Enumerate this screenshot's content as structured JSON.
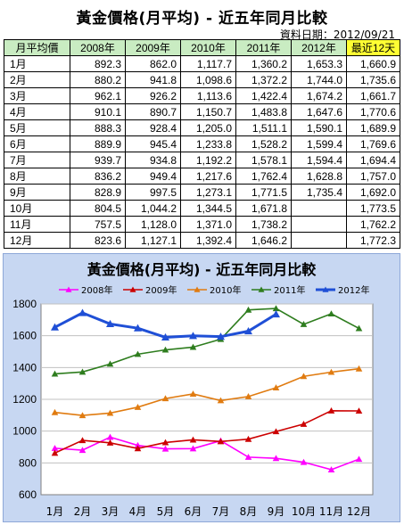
{
  "header": {
    "title": "黃金價格(月平均) - 近五年同月比較",
    "date_label": "資料日期：",
    "date_value": "2012/09/21"
  },
  "table": {
    "columns": [
      "月平均價",
      "2008年",
      "2009年",
      "2010年",
      "2011年",
      "2012年",
      "最近12天"
    ],
    "rows": [
      [
        "1月",
        "892.3",
        "862.0",
        "1,117.7",
        "1,360.2",
        "1,653.3",
        "1,660.9"
      ],
      [
        "2月",
        "880.2",
        "941.8",
        "1,098.6",
        "1,372.2",
        "1,744.0",
        "1,735.6"
      ],
      [
        "3月",
        "962.1",
        "926.2",
        "1,113.6",
        "1,422.4",
        "1,674.2",
        "1,661.7"
      ],
      [
        "4月",
        "910.1",
        "890.7",
        "1,150.7",
        "1,483.8",
        "1,647.6",
        "1,770.6"
      ],
      [
        "5月",
        "888.3",
        "928.4",
        "1,205.0",
        "1,511.1",
        "1,590.1",
        "1,689.9"
      ],
      [
        "6月",
        "889.9",
        "945.4",
        "1,233.8",
        "1,528.2",
        "1,599.4",
        "1,769.6"
      ],
      [
        "7月",
        "939.7",
        "934.8",
        "1,192.2",
        "1,578.1",
        "1,594.4",
        "1,694.4"
      ],
      [
        "8月",
        "836.2",
        "949.4",
        "1,217.6",
        "1,762.4",
        "1,628.8",
        "1,757.0"
      ],
      [
        "9月",
        "828.9",
        "997.5",
        "1,273.1",
        "1,771.5",
        "1,735.4",
        "1,692.0"
      ],
      [
        "10月",
        "804.5",
        "1,044.2",
        "1,344.5",
        "1,671.8",
        "",
        "1,773.5"
      ],
      [
        "11月",
        "757.5",
        "1,128.0",
        "1,371.0",
        "1,738.2",
        "",
        "1,762.2"
      ],
      [
        "12月",
        "823.6",
        "1,127.1",
        "1,392.4",
        "1,646.2",
        "",
        "1,772.3"
      ]
    ]
  },
  "colors": {
    "header_bg": "#c9ecc2",
    "highlight_bg": "#ffff33",
    "chart_bg": "#c7d7f2",
    "plot_bg": "#ffffff"
  },
  "chart_data": {
    "type": "line",
    "title": "黃金價格(月平均) - 近五年同月比較",
    "categories": [
      "1月",
      "2月",
      "3月",
      "4月",
      "5月",
      "6月",
      "7月",
      "8月",
      "9月",
      "10月",
      "11月",
      "12月"
    ],
    "ylim": [
      600,
      1800
    ],
    "yticks": [
      600,
      800,
      1000,
      1200,
      1400,
      1600,
      1800
    ],
    "grid": true,
    "legend_position": "top",
    "series": [
      {
        "name": "2008年",
        "color": "#ff00ff",
        "marker": "triangle",
        "values": [
          892.3,
          880.2,
          962.1,
          910.1,
          888.3,
          889.9,
          939.7,
          836.2,
          828.9,
          804.5,
          757.5,
          823.6
        ]
      },
      {
        "name": "2009年",
        "color": "#cc0000",
        "marker": "triangle",
        "values": [
          862.0,
          941.8,
          926.2,
          890.7,
          928.4,
          945.4,
          934.8,
          949.4,
          997.5,
          1044.2,
          1128.0,
          1127.1
        ]
      },
      {
        "name": "2010年",
        "color": "#e07b10",
        "marker": "triangle",
        "values": [
          1117.7,
          1098.6,
          1113.6,
          1150.7,
          1205.0,
          1233.8,
          1192.2,
          1217.6,
          1273.1,
          1344.5,
          1371.0,
          1392.4
        ]
      },
      {
        "name": "2011年",
        "color": "#2e7d1e",
        "marker": "triangle",
        "values": [
          1360.2,
          1372.2,
          1422.4,
          1483.8,
          1511.1,
          1528.2,
          1578.1,
          1762.4,
          1771.5,
          1671.8,
          1738.2,
          1646.2
        ]
      },
      {
        "name": "2012年",
        "color": "#1f4fd6",
        "marker": "triangle",
        "bold": true,
        "values": [
          1653.3,
          1744.0,
          1674.2,
          1647.6,
          1590.1,
          1599.4,
          1594.4,
          1628.8,
          1735.4,
          null,
          null,
          null
        ]
      }
    ]
  }
}
